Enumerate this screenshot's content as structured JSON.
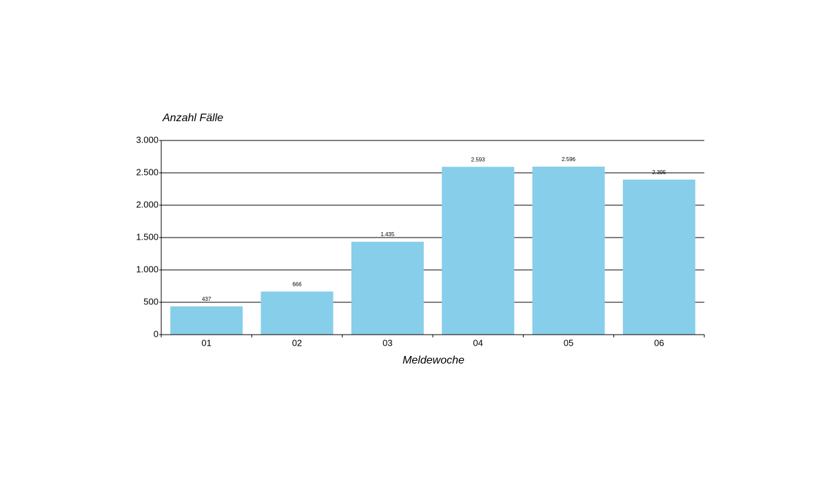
{
  "chart_data": {
    "type": "bar",
    "y_label": "Anzahl Fälle",
    "x_label": "Meldewoche",
    "categories": [
      "01",
      "02",
      "03",
      "04",
      "05",
      "06"
    ],
    "values": [
      437,
      666,
      1435,
      2593,
      2596,
      2395
    ],
    "value_labels": [
      "437",
      "666",
      "1.435",
      "2.593",
      "2.596",
      "2.395"
    ],
    "color": "#87ceeb",
    "ylim": [
      0,
      3000
    ],
    "yticks": [
      0,
      500,
      {
        "value": 1000,
        "label": "1.000"
      },
      {
        "value": 1500,
        "label": "1.500"
      },
      {
        "value": 2000,
        "label": "2.000"
      },
      {
        "value": 2500,
        "label": "2.500"
      },
      {
        "value": 3000,
        "label": "3.000"
      }
    ],
    "grid": true
  }
}
